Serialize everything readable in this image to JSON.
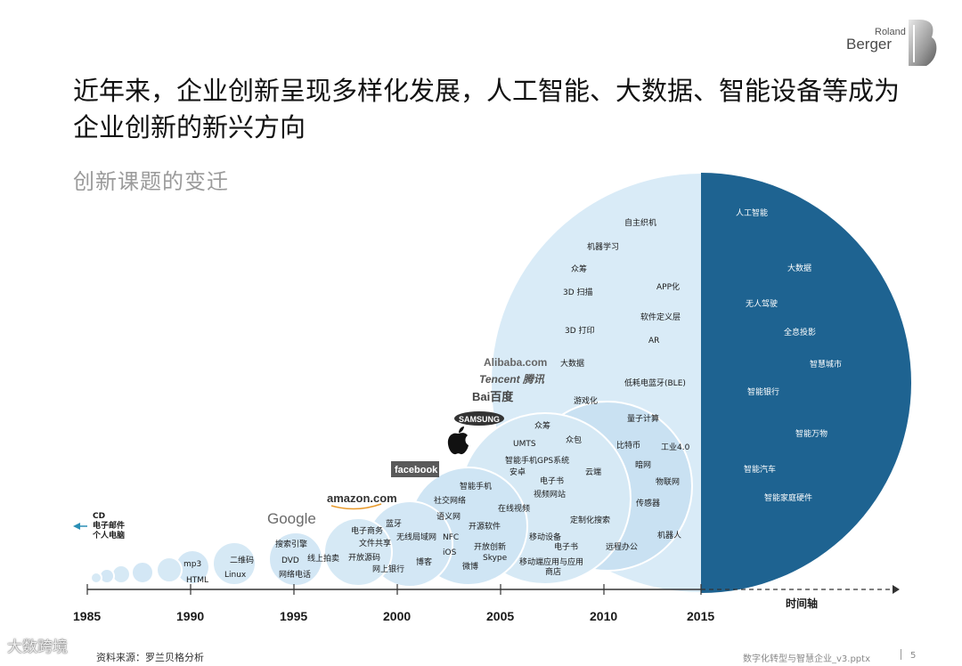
{
  "logo": {
    "line1": "Roland",
    "line2": "Berger"
  },
  "title": "近年来，企业创新呈现多样化发展，人工智能、大数据、智能设备等成为企业创新的新兴方向",
  "subtitle": "创新课题的变迁",
  "timeline": {
    "years": [
      "1985",
      "1990",
      "1995",
      "2000",
      "2005",
      "2010",
      "2015"
    ],
    "axis_label": "时间轴"
  },
  "left_items": [
    "CD",
    "电子邮件",
    "个人电脑"
  ],
  "era_1990": [
    "mp3",
    "HTML"
  ],
  "era_1992": [
    "二维码",
    "Linux"
  ],
  "era_1995": [
    "搜索引擎",
    "DVD",
    "网络电话"
  ],
  "era_1998": [
    "线上拍卖",
    "电子商务",
    "文件共享",
    "开放源码",
    "网上银行"
  ],
  "era_2000": [
    "蓝牙",
    "无线局域网",
    "博客"
  ],
  "era_2003": [
    "智能手机",
    "社交网络",
    "语义网",
    "NFC",
    "iOS",
    "开源软件",
    "开放创新",
    "Skype",
    "微博"
  ],
  "era_2008": [
    "众筹",
    "UMTS",
    "众包",
    "智能手机GPS系统",
    "安卓",
    "电子书",
    "视频网站",
    "在线视频",
    "云端",
    "移动设备",
    "电子书",
    "移动端应用与应用商店",
    "定制化搜索",
    "远程办公"
  ],
  "era_2012": [
    "游戏化",
    "量子计算",
    "比特币",
    "工业4.0",
    "暗网",
    "物联网",
    "传感器",
    "机器人"
  ],
  "era_big": [
    "自主织机",
    "机器学习",
    "众筹",
    "3D 扫描",
    "APP化",
    "软件定义层",
    "3D 打印",
    "AR",
    "大数据",
    "低耗电蓝牙(BLE)"
  ],
  "future": [
    "人工智能",
    "大数据",
    "无人驾驶",
    "全息投影",
    "智慧城市",
    "智能银行",
    "智能万物",
    "智能汽车",
    "智能家庭硬件"
  ],
  "brands": [
    "Google",
    "amazon.com",
    "facebook",
    "SAMSUNG",
    "Bai百度",
    "Tencent 腾讯",
    "Alibaba.com"
  ],
  "footer": {
    "source": "资料来源：罗兰贝格分析",
    "file": "数字化转型与智慧企业_v3.pptx",
    "page": "5"
  },
  "watermark": "大数跨境",
  "colors": {
    "future_fill": "#1e6391",
    "bubble_fill": "#d6e9f5",
    "bubble_stroke": "#ffffff",
    "axis": "#333333"
  }
}
